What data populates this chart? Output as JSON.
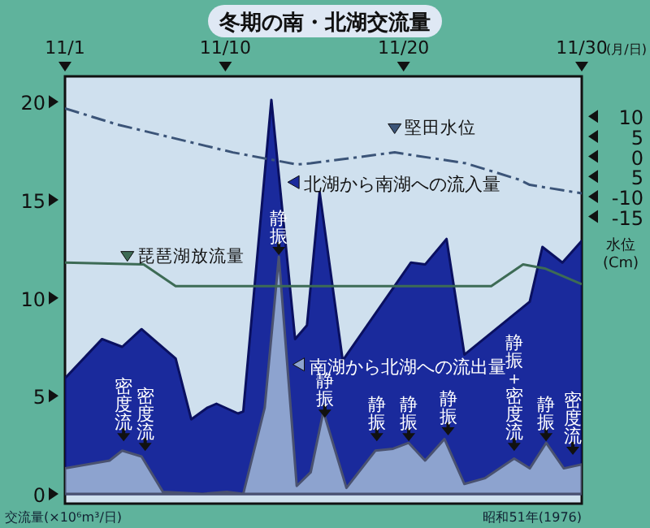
{
  "chart_data": {
    "type": "area",
    "title": "冬期の南・北湖交流量",
    "xlabel": "(月/日)",
    "ylabel": "交流量(×10⁶m³/日)",
    "y2label": "水位(Cm)",
    "legend": "top",
    "xlim": [
      "1976-11-01",
      "1976-11-30"
    ],
    "xticks": [
      {
        "value": "1976-11-01",
        "label": "11/1"
      },
      {
        "value": "1976-11-10",
        "label": "11/10"
      },
      {
        "value": "1976-11-20",
        "label": "11/20"
      },
      {
        "value": "1976-11-30",
        "label": "11/30"
      }
    ],
    "ylim": [
      -0.5,
      21.3
    ],
    "yticks": [
      0,
      5,
      10,
      15,
      20
    ],
    "y2lim": [
      -86.7,
      20
    ],
    "y2ticks": [
      10,
      5,
      0,
      {
        "value": -5,
        "label": "5"
      },
      -10,
      -15
    ],
    "series": [
      {
        "name": "北湖から南湖への流入量",
        "color": "#1a2a9c",
        "x": [
          "1976-11-01",
          "1976-11-03T02:00",
          "1976-11-04T05:00",
          "1976-11-05T07:00",
          "1976-11-07T05:00",
          "1976-11-08T02:00",
          "1976-11-09",
          "1976-11-09T12:00",
          "1976-11-10T17:00",
          "1976-11-11",
          "1976-11-12T14:00",
          "1976-11-13T22:00",
          "1976-11-14T14:00",
          "1976-11-15T07:00",
          "1976-11-16T14:00",
          "1976-11-20T10:00",
          "1976-11-21T05:00",
          "1976-11-22T10:00",
          "1976-11-23T10:00",
          "1976-11-27T02:00",
          "1976-11-27T19:00",
          "1976-11-28T22:00",
          "1976-11-30"
        ],
        "values": [
          5.9,
          7.9,
          7.5,
          8.4,
          6.9,
          3.8,
          4.4,
          4.6,
          4.1,
          4.2,
          20.1,
          7.9,
          8.6,
          15.4,
          6.8,
          11.8,
          11.7,
          13.0,
          7.1,
          9.8,
          12.6,
          11.8,
          12.9
        ]
      },
      {
        "name": "南湖から北湖への流出量",
        "color": "#8da3cf",
        "x": [
          "1976-11-01",
          "1976-11-03T12:00",
          "1976-11-04T05:00",
          "1976-11-05T07:00",
          "1976-11-06T12:00",
          "1976-11-08T17:00",
          "1976-11-10T02:00",
          "1976-11-11",
          "1976-11-12T05:00",
          "1976-11-13",
          "1976-11-14",
          "1976-11-14T19:00",
          "1976-11-15T12:00",
          "1976-11-16T19:00",
          "1976-11-18T10:00",
          "1976-11-19T10:00",
          "1976-11-20T07:00",
          "1976-11-21T05:00",
          "1976-11-22T07:00",
          "1976-11-23T10:00",
          "1976-11-24T14:00",
          "1976-11-26T05:00",
          "1976-11-27T02:00",
          "1976-11-28",
          "1976-11-29",
          "1976-11-30"
        ],
        "values": [
          1.3,
          1.7,
          2.2,
          1.9,
          0.1,
          0,
          0.1,
          0,
          4.4,
          12.1,
          0.4,
          1.1,
          4.2,
          0.3,
          2.2,
          2.3,
          2.6,
          1.7,
          2.8,
          0.5,
          0.8,
          1.8,
          1.3,
          2.6,
          1.3,
          1.5
        ]
      },
      {
        "name": "琵琶湖放流量",
        "type": "line",
        "color": "#3d6b55",
        "x": [
          "1976-11-01",
          "1976-11-05T10:00",
          "1976-11-07T05:00",
          "1976-11-24T22:00",
          "1976-11-26T17:00",
          "1976-11-27T22:00",
          "1976-11-30"
        ],
        "values": [
          11.8,
          11.7,
          10.6,
          10.6,
          11.7,
          11.5,
          10.7
        ]
      },
      {
        "name": "堅田水位",
        "type": "line",
        "axis": "y2",
        "line_style": "dashed",
        "color": "#3b5478",
        "x": [
          "1976-11-01",
          "1976-11-03T22:00",
          "1976-11-10T10:00",
          "1976-11-14",
          "1976-11-14T19:00",
          "1976-11-19T12:00",
          "1976-11-23T12:00",
          "1976-11-26T12:00",
          "1976-11-27T02:00",
          "1976-11-30"
        ],
        "values": [
          12,
          8,
          1,
          -2,
          -1.7,
          1,
          -1.7,
          -5.8,
          -7.1,
          -9.2
        ]
      }
    ],
    "annotations": [
      {
        "text": "密度流",
        "x": "1976-11-04T07:00",
        "y": 2.6
      },
      {
        "text": "密度流",
        "x": "1976-11-05T12:00",
        "y": 2.1
      },
      {
        "text": "静振",
        "x": "1976-11-13",
        "y": 12.1
      },
      {
        "text": "静振",
        "x": "1976-11-15T14:00",
        "y": 3.8
      },
      {
        "text": "静振",
        "x": "1976-11-18T12:00",
        "y": 2.6
      },
      {
        "text": "静振",
        "x": "1976-11-20T07:00",
        "y": 2.6
      },
      {
        "text": "静振",
        "x": "1976-11-22T12:00",
        "y": 2.9
      },
      {
        "text": "静振＋密度流",
        "x": "1976-11-26T05:00",
        "y": 2.1
      },
      {
        "text": "静振",
        "x": "1976-11-28",
        "y": 2.6
      },
      {
        "text": "密度流",
        "x": "1976-11-29T12:00",
        "y": 1.9
      },
      "昭和51年(1976)"
    ]
  }
}
